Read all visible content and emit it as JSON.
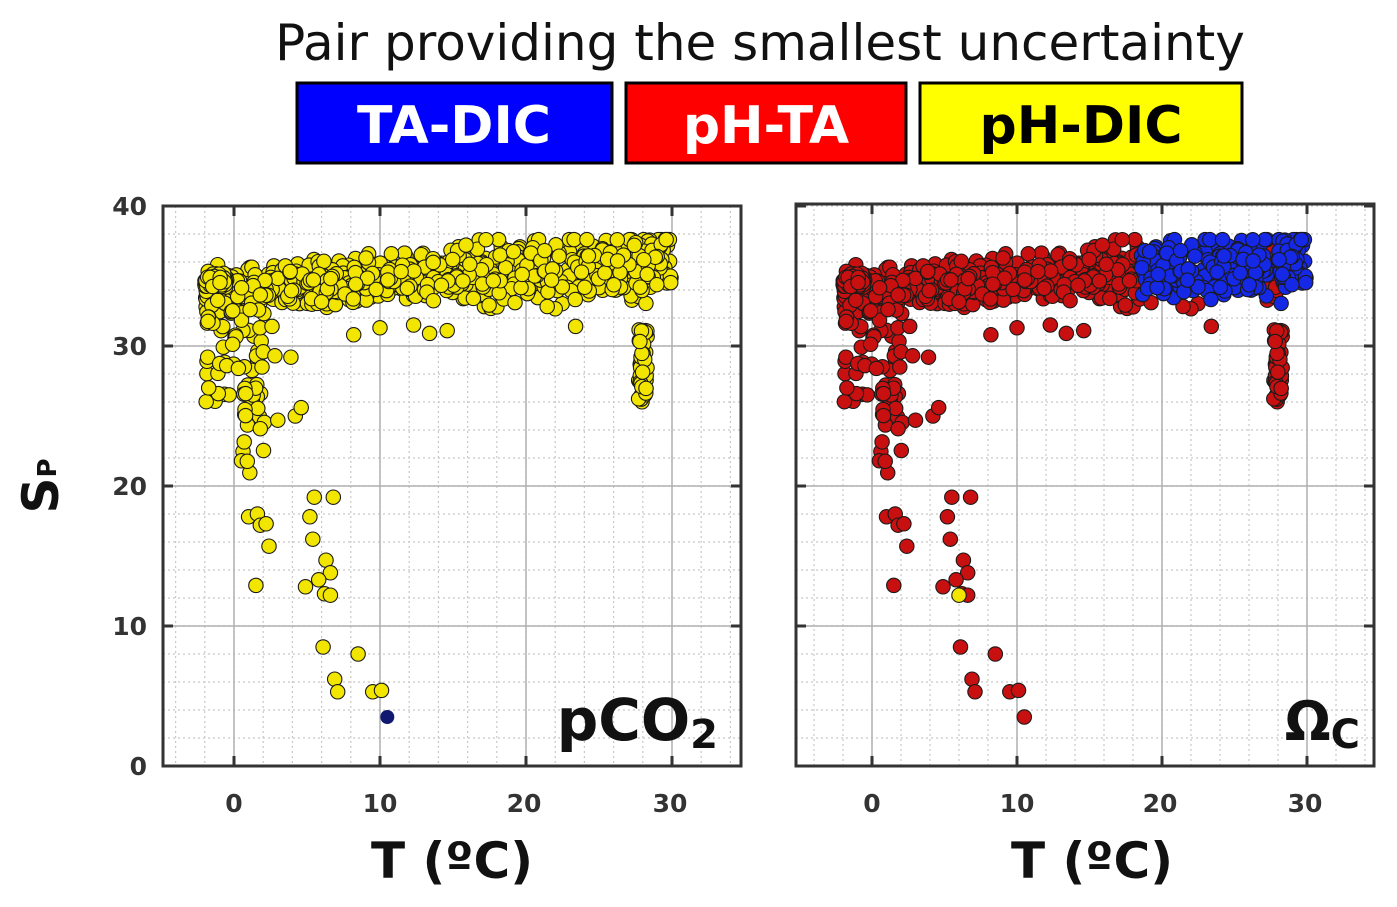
{
  "title": "Pair providing the smallest uncertainty",
  "legend": [
    {
      "label": "TA-DIC",
      "color": "#0000ff",
      "text_color": "#ffffff"
    },
    {
      "label": "pH-TA",
      "color": "#ff0000",
      "text_color": "#ffffff"
    },
    {
      "label": "pH-DIC",
      "color": "#ffff00",
      "text_color": "#000000"
    }
  ],
  "ylabel": {
    "main": "S",
    "sub": "P"
  },
  "chart_data": [
    {
      "type": "scatter",
      "panel_label": {
        "main": "pCO",
        "sub": "2"
      },
      "xlabel": "T (ºC)",
      "xlim": [
        -5,
        35
      ],
      "ylim": [
        0,
        40
      ],
      "xticks": [
        "0",
        "10",
        "20",
        "30"
      ],
      "yticks": [
        "0",
        "10",
        "20",
        "30",
        "40"
      ],
      "color_groups": {
        "TA-DIC": [
          [
            10.5,
            3.5
          ]
        ],
        "pH-DIC": "all other points"
      }
    },
    {
      "type": "scatter",
      "panel_label": {
        "main": "Ω",
        "sub": "C"
      },
      "xlabel": "T (ºC)",
      "xlim": [
        -5,
        35
      ],
      "ylim": [
        0,
        40
      ],
      "xticks": [
        "0",
        "10",
        "20",
        "30"
      ],
      "yticks": [],
      "color_groups": {
        "TA-DIC": "points with T > ~18 ºC and S > ~33",
        "pH-DIC": [
          [
            6,
            12.2
          ]
        ],
        "pH-TA": "all other points"
      }
    }
  ],
  "palette": {
    "yellow": "#f2e600",
    "red": "#c81010",
    "blue": "#1428e6",
    "navy": "#101870"
  }
}
